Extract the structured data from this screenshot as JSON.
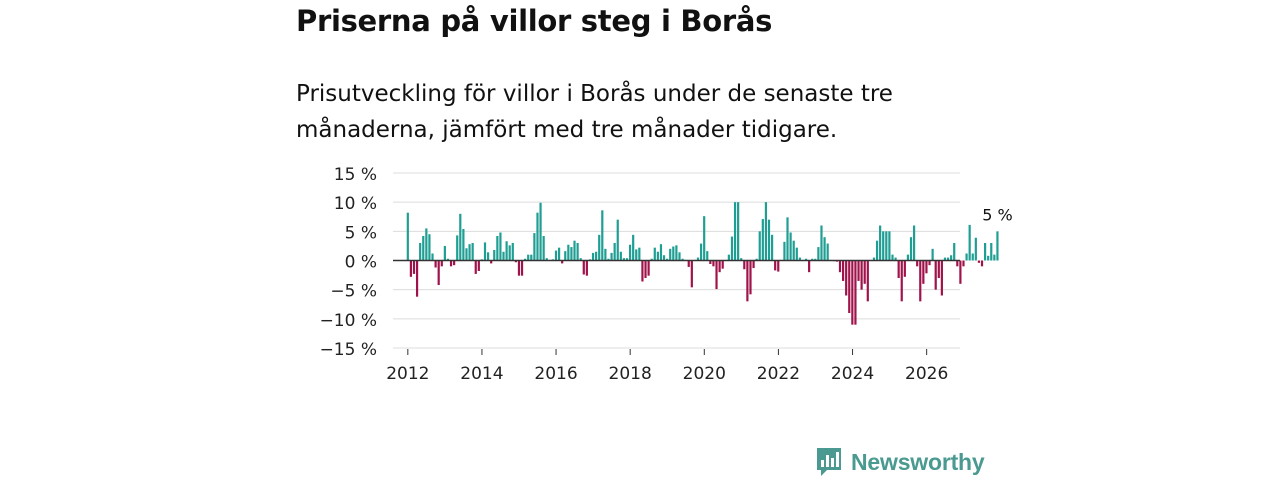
{
  "header": {
    "title": "Priserna på villor steg i Borås",
    "subtitle": "Prisutveckling för villor i Borås under de senaste tre månaderna, jämfört med tre månader tidigare."
  },
  "brand": {
    "name": "Newsworthy",
    "icon": "bar-chart-logo-icon"
  },
  "colors": {
    "positive": "#1f9e93",
    "negative": "#a0124a",
    "grid": "#dcdcdc",
    "zero": "#333333",
    "brand": "#4a9a91"
  },
  "chart_data": {
    "type": "bar",
    "title": "Priserna på villor steg i Borås",
    "xlabel": "",
    "ylabel": "",
    "ylim": [
      -15,
      15
    ],
    "yticks": [
      15,
      10,
      5,
      0,
      -5,
      -10,
      -15
    ],
    "ytick_labels": [
      "15 %",
      "10 %",
      "5 %",
      "0 %",
      "−5 %",
      "−10 %",
      "−15 %"
    ],
    "xlim": [
      2011.6,
      2026.9
    ],
    "xticks": [
      2012,
      2014,
      2016,
      2018,
      2020,
      2022,
      2024,
      2026
    ],
    "xtick_labels": [
      "2012",
      "2014",
      "2016",
      "2018",
      "2020",
      "2022",
      "2024",
      "2026"
    ],
    "x_start": 2012.0,
    "x_step": 0.0833,
    "last_value_label": "5 %",
    "values": [
      8.2,
      -2.8,
      -2.3,
      -6.2,
      3.0,
      4.2,
      5.5,
      4.5,
      1.2,
      -1.2,
      -4.2,
      -1.0,
      2.5,
      0.3,
      -1.0,
      -0.8,
      4.3,
      8.0,
      5.4,
      2.1,
      2.8,
      3.0,
      -2.3,
      -1.8,
      0.2,
      3.1,
      1.4,
      -0.5,
      1.8,
      4.2,
      4.8,
      1.5,
      3.3,
      2.6,
      3.0,
      -0.3,
      -2.6,
      -2.6,
      0.3,
      1.0,
      1.0,
      4.7,
      8.2,
      9.9,
      4.2,
      0.4,
      0.1,
      0.2,
      1.7,
      2.2,
      -0.5,
      1.6,
      2.7,
      2.3,
      3.4,
      3.0,
      0.4,
      -2.4,
      -2.6,
      0.2,
      1.3,
      1.5,
      4.4,
      8.6,
      2.0,
      0.3,
      1.3,
      3.0,
      7.0,
      1.5,
      0.4,
      0.4,
      2.7,
      4.4,
      1.9,
      2.2,
      -3.6,
      -3.0,
      -2.6,
      0.3,
      2.2,
      1.5,
      2.8,
      0.9,
      0.3,
      2.0,
      2.4,
      2.6,
      1.4,
      0.3,
      0.1,
      -1.1,
      -4.6,
      0.1,
      0.5,
      2.9,
      7.6,
      1.6,
      -0.6,
      -1.0,
      -4.9,
      -2.0,
      -1.4,
      0.1,
      1.0,
      4.1,
      10.0,
      10.0,
      0.4,
      -1.5,
      -7.0,
      -5.8,
      -1.3,
      0.3,
      5.0,
      7.1,
      10.0,
      7.0,
      4.4,
      -1.7,
      -1.9,
      0.1,
      3.2,
      7.4,
      4.8,
      3.4,
      2.2,
      0.5,
      0.1,
      0.3,
      -2.0,
      0.3,
      0.3,
      2.3,
      6.0,
      4.0,
      2.9,
      0.1,
      -0.1,
      -0.2,
      -2.0,
      -3.5,
      -6.0,
      -9.0,
      -11.0,
      -11.0,
      -3.5,
      -5.0,
      -4.0,
      -7.0,
      0.1,
      0.5,
      3.4,
      6.0,
      5.0,
      5.0,
      5.0,
      1.0,
      0.5,
      -3.0,
      -7.0,
      -2.8,
      1.0,
      4.0,
      6.0,
      -1.0,
      -7.0,
      -4.0,
      -2.2,
      -0.8,
      2.0,
      -5.0,
      -3.0,
      -6.0,
      0.5,
      0.5,
      0.9,
      3.0,
      -1.0,
      -4.0,
      -1.0,
      1.2,
      6.1,
      1.2,
      3.9,
      -0.4,
      -1.0,
      3.0,
      0.8,
      3.0,
      1.0,
      5.0
    ]
  }
}
